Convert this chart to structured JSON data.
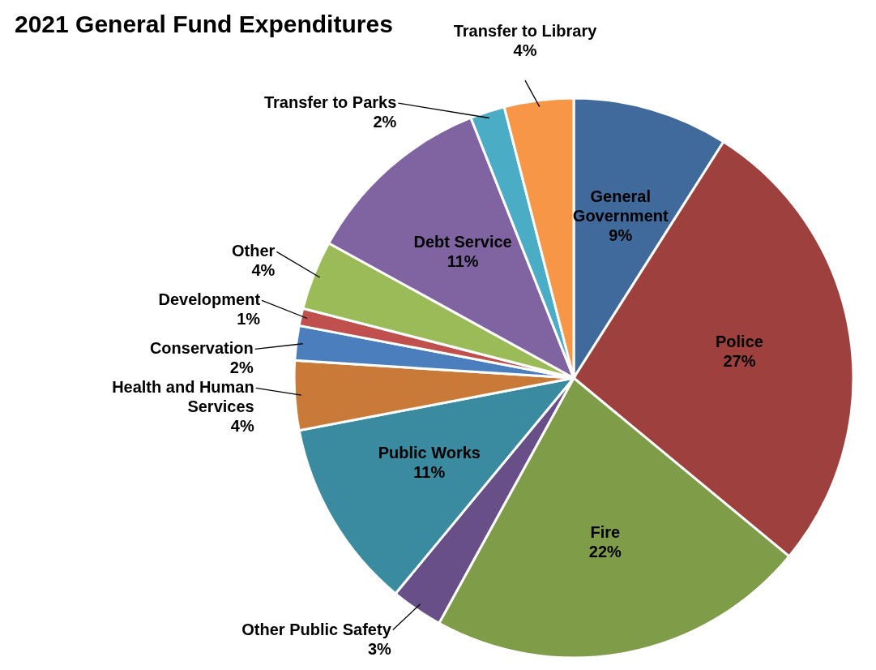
{
  "chart_data": {
    "type": "pie",
    "title": "2021 General Fund Expenditures",
    "categories": [
      "General Government",
      "Police",
      "Fire",
      "Other Public Safety",
      "Public Works",
      "Health and Human Services",
      "Conservation",
      "Development",
      "Other",
      "Debt Service",
      "Transfer to Parks",
      "Transfer to Library"
    ],
    "values": [
      9,
      27,
      22,
      3,
      11,
      4,
      2,
      1,
      4,
      11,
      2,
      4
    ],
    "value_labels": [
      "9%",
      "27%",
      "22%",
      "3%",
      "11%",
      "4%",
      "2%",
      "1%",
      "4%",
      "11%",
      "2%",
      "4%"
    ],
    "colors": [
      "#3f6a9b",
      "#9e413e",
      "#7f9c48",
      "#684f87",
      "#3b8ba0",
      "#c97a38",
      "#4a7ebd",
      "#c0504d",
      "#9bbb59",
      "#8064a2",
      "#4bacc6",
      "#f79646"
    ]
  }
}
